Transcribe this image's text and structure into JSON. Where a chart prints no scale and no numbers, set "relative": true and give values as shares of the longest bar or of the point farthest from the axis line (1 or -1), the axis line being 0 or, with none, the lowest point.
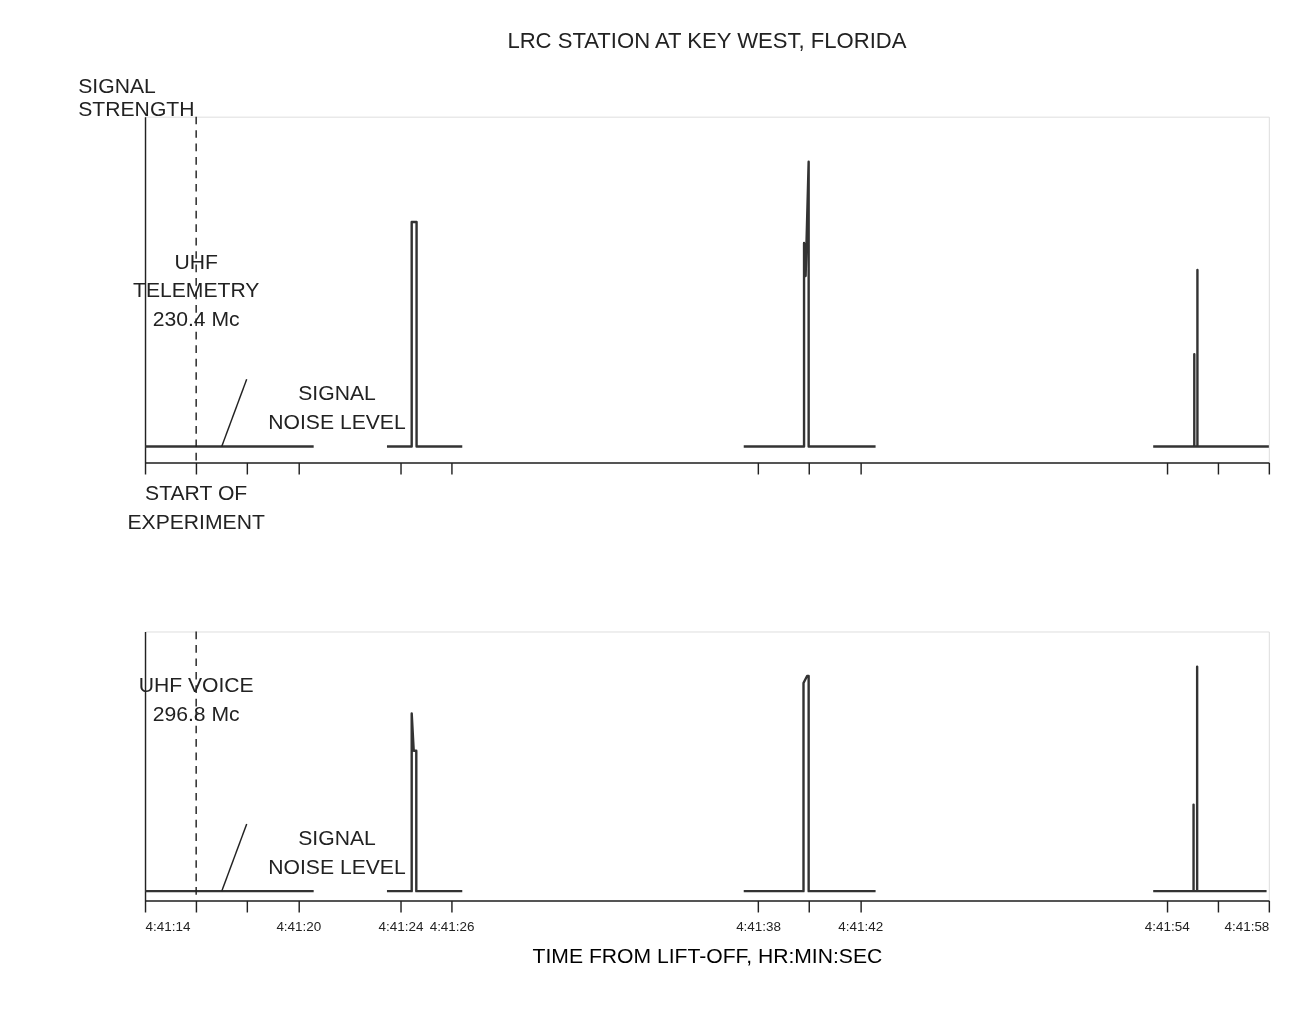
{
  "chart_data": [
    {
      "type": "line",
      "title": "LRC STATION AT KEY WEST, FLORIDA",
      "ylabel": "SIGNAL\nSTRENGTH",
      "relative": true,
      "tick_labels": false,
      "xlim": [
        4.687222,
        4.699444
      ],
      "xticks": [
        {
          "value": 4.687222,
          "label": null
        },
        {
          "value": 4.687778,
          "label": null
        },
        {
          "value": 4.688333,
          "label": null
        },
        {
          "value": 4.688889,
          "label": null
        },
        {
          "value": 4.69,
          "label": null
        },
        {
          "value": 4.690556,
          "label": null
        },
        {
          "value": 4.693889,
          "label": null
        },
        {
          "value": 4.694444,
          "label": null
        },
        {
          "value": 4.695,
          "label": null
        },
        {
          "value": 4.698333,
          "label": null
        },
        {
          "value": 4.698889,
          "label": null
        },
        {
          "value": 4.699444,
          "label": null
        }
      ],
      "series": [
        {
          "color": "#333333",
          "x": [
            4.687222,
            4.689056,
            null,
            4.689853,
            4.690122,
            4.690122,
            4.690175,
            4.690175,
            4.690672,
            null,
            4.693733,
            4.694389,
            4.694389,
            4.694406,
            4.694439,
            4.694439,
            4.695167,
            null,
            4.698186,
            4.698633,
            4.698633,
            4.698633,
            4.698667,
            4.698667,
            4.698667,
            4.699444
          ],
          "values": [
            0.053,
            0.053,
            null,
            0.053,
            0.053,
            0.8,
            0.8,
            0.053,
            0.053,
            null,
            0.053,
            0.053,
            0.73,
            0.62,
            1.0,
            0.053,
            0.053,
            null,
            0.053,
            0.053,
            0.36,
            0.053,
            0.053,
            0.64,
            0.053,
            0.053
          ]
        }
      ],
      "ref_lines": [
        {
          "axis": "x",
          "value": 4.687778,
          "label": "START OF\nEXPERIMENT",
          "line_style": "dashed"
        }
      ],
      "annotations": [
        "UHF\nTELEMETRY\n230.4 Mc",
        {
          "text": "SIGNAL\nNOISE LEVEL",
          "x": 4.688056,
          "y": 0.053
        }
      ]
    },
    {
      "type": "line",
      "xlabel": "TIME FROM LIFT-OFF, HR:MIN:SEC",
      "relative": true,
      "tick_labels": "x",
      "xlim": [
        4.687222,
        4.699444
      ],
      "xticks": [
        {
          "value": 4.687222,
          "label": "4:41:14"
        },
        {
          "value": 4.687778,
          "label": null
        },
        {
          "value": 4.688333,
          "label": null
        },
        {
          "value": 4.688889,
          "label": "4:41:20"
        },
        {
          "value": 4.69,
          "label": "4:41:24"
        },
        {
          "value": 4.690556,
          "label": "4:41:26"
        },
        {
          "value": 4.693889,
          "label": "4:41:38"
        },
        {
          "value": 4.694444,
          "label": null
        },
        {
          "value": 4.695,
          "label": "4:41:42"
        },
        {
          "value": 4.698333,
          "label": "4:41:54"
        },
        {
          "value": 4.698889,
          "label": null
        },
        {
          "value": 4.699444,
          "label": "4:41:58"
        }
      ],
      "series": [
        {
          "color": "#333333",
          "x": [
            4.687222,
            4.689056,
            null,
            4.689853,
            4.690122,
            4.690122,
            4.690144,
            4.690172,
            4.690172,
            4.690672,
            null,
            4.693733,
            4.694383,
            4.694383,
            4.694422,
            4.694439,
            4.694439,
            4.695167,
            null,
            4.698186,
            4.698625,
            4.698625,
            4.698625,
            4.698664,
            4.698664,
            4.698664,
            4.699419
          ],
          "values": [
            0.04,
            0.04,
            null,
            0.04,
            0.04,
            0.8,
            0.64,
            0.64,
            0.04,
            0.04,
            null,
            0.04,
            0.04,
            0.93,
            0.96,
            0.96,
            0.04,
            0.04,
            null,
            0.04,
            0.04,
            0.41,
            0.04,
            0.04,
            1.0,
            0.04,
            0.04
          ]
        }
      ],
      "ref_lines": [
        {
          "axis": "x",
          "value": 4.687778,
          "line_style": "dashed"
        }
      ],
      "annotations": [
        "UHF VOICE\n296.8 Mc",
        {
          "text": "SIGNAL\nNOISE LEVEL",
          "x": 4.688056,
          "y": 0.04
        }
      ]
    }
  ]
}
